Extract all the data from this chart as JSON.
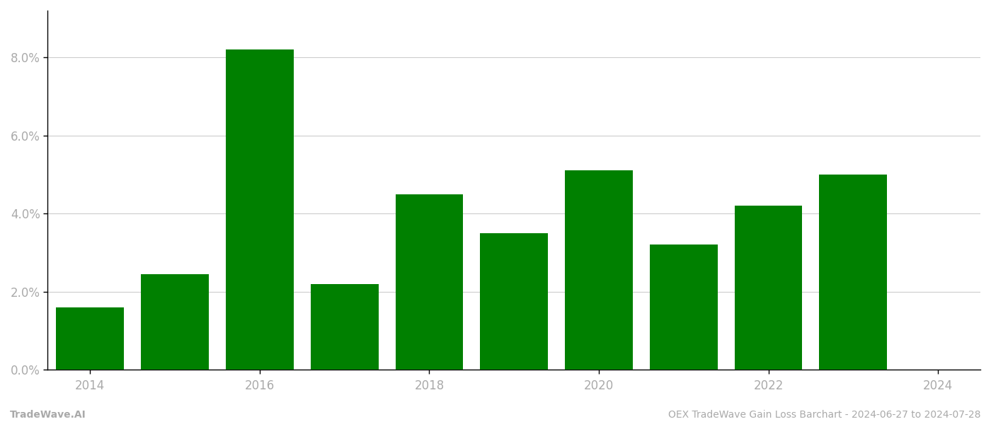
{
  "years": [
    2014,
    2015,
    2016,
    2017,
    2018,
    2019,
    2020,
    2021,
    2022,
    2023
  ],
  "values": [
    0.016,
    0.0245,
    0.082,
    0.022,
    0.045,
    0.035,
    0.051,
    0.032,
    0.042,
    0.05
  ],
  "bar_color": "#008000",
  "background_color": "#ffffff",
  "grid_color": "#cccccc",
  "ylim": [
    0,
    0.092
  ],
  "yticks": [
    0.0,
    0.02,
    0.04,
    0.06,
    0.08
  ],
  "ytick_labels": [
    "0.0%",
    "2.0%",
    "4.0%",
    "6.0%",
    "8.0%"
  ],
  "xtick_positions": [
    2014,
    2016,
    2018,
    2020,
    2022,
    2024
  ],
  "xtick_labels": [
    "2014",
    "2016",
    "2018",
    "2020",
    "2022",
    "2024"
  ],
  "footer_left": "TradeWave.AI",
  "footer_right": "OEX TradeWave Gain Loss Barchart - 2024-06-27 to 2024-07-28",
  "footer_color": "#aaaaaa",
  "tick_label_color": "#aaaaaa",
  "bar_width": 0.8,
  "xlim": [
    2013.5,
    2024.5
  ]
}
